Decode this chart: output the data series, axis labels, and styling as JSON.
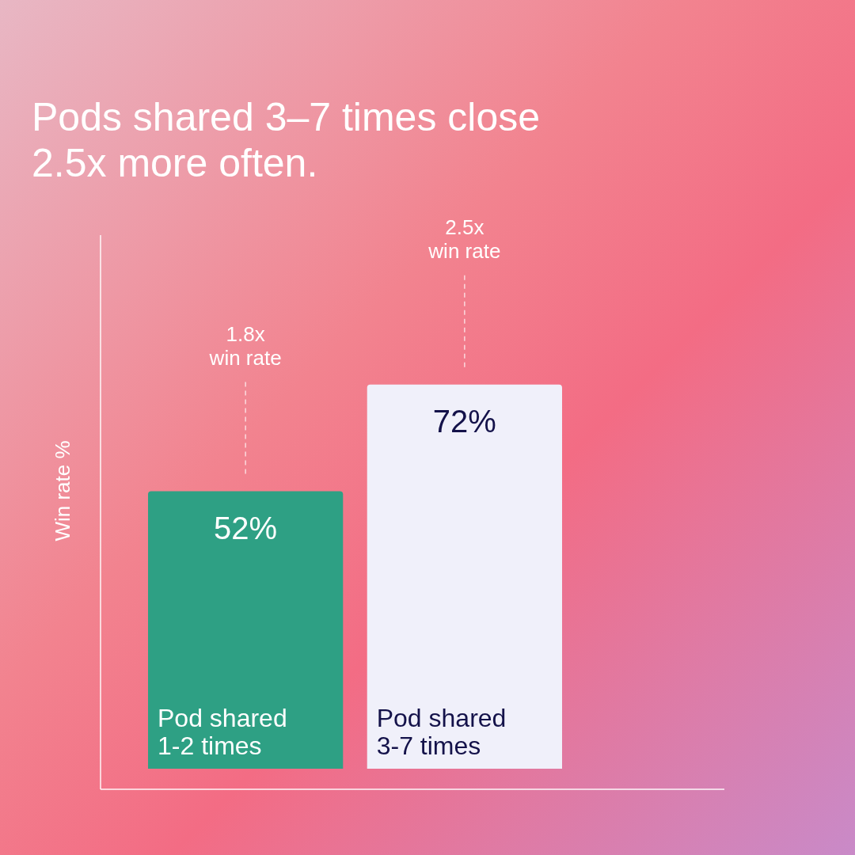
{
  "chart_data": {
    "type": "bar",
    "title": "Pods shared 3–7 times close 2.5x more often.",
    "ylabel": "Win rate %",
    "categories": [
      "Pod shared 1-2 times",
      "Pod shared 3-7 times"
    ],
    "values": [
      52,
      72
    ],
    "value_labels": [
      "52%",
      "72%"
    ],
    "colors": [
      "#2ea084",
      "#f0f0fa"
    ],
    "annotations": [
      "1.8x win rate",
      "2.5x win rate"
    ]
  }
}
